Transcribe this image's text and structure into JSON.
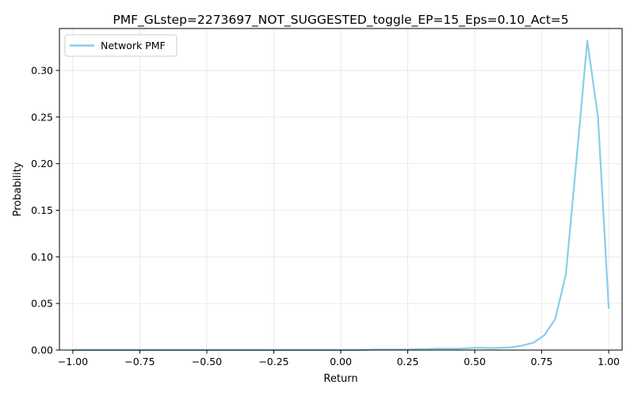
{
  "chart_data": {
    "type": "line",
    "title": "PMF_GLstep=2273697_NOT_SUGGESTED_toggle_EP=15_Eps=0.10_Act=5",
    "xlabel": "Return",
    "ylabel": "Probability",
    "xlim": [
      -1.05,
      1.05
    ],
    "ylim": [
      0.0,
      0.345
    ],
    "grid": true,
    "legend_position": "top-left",
    "x_ticks": [
      -1.0,
      -0.75,
      -0.5,
      -0.25,
      0.0,
      0.25,
      0.5,
      0.75,
      1.0
    ],
    "x_tick_labels": [
      "−1.00",
      "−0.75",
      "−0.50",
      "−0.25",
      "0.00",
      "0.25",
      "0.50",
      "0.75",
      "1.00"
    ],
    "y_ticks": [
      0.0,
      0.05,
      0.1,
      0.15,
      0.2,
      0.25,
      0.3
    ],
    "y_tick_labels": [
      "0.00",
      "0.05",
      "0.10",
      "0.15",
      "0.20",
      "0.25",
      "0.30"
    ],
    "series": [
      {
        "name": "Network PMF",
        "color": "#87ceeb",
        "x": [
          -1.0,
          -0.96,
          -0.92,
          -0.88,
          -0.84,
          -0.8,
          -0.76,
          -0.72,
          -0.68,
          -0.64,
          -0.6,
          -0.56,
          -0.52,
          -0.48,
          -0.44,
          -0.4,
          -0.36,
          -0.32,
          -0.28,
          -0.24,
          -0.2,
          -0.16,
          -0.12,
          -0.08,
          -0.04,
          0.0,
          0.04,
          0.08,
          0.12,
          0.16,
          0.2,
          0.24,
          0.28,
          0.32,
          0.36,
          0.4,
          0.44,
          0.48,
          0.52,
          0.56,
          0.6,
          0.64,
          0.68,
          0.72,
          0.76,
          0.8,
          0.84,
          0.88,
          0.92,
          0.96,
          1.0
        ],
        "y": [
          0.0,
          0.0,
          0.0,
          0.0,
          0.0,
          0.0,
          0.0,
          0.0,
          0.0,
          0.0,
          0.0,
          0.0,
          0.0,
          0.0,
          0.0,
          0.0,
          0.0,
          0.0,
          0.0,
          0.0,
          0.0,
          0.0,
          0.0,
          0.0,
          0.0,
          0.0,
          0.0,
          0.0,
          0.0005,
          0.0005,
          0.0005,
          0.0005,
          0.001,
          0.001,
          0.0015,
          0.0015,
          0.0015,
          0.002,
          0.0025,
          0.002,
          0.0025,
          0.003,
          0.005,
          0.008,
          0.016,
          0.033,
          0.081,
          0.205,
          0.332,
          0.25,
          0.045
        ]
      }
    ]
  }
}
